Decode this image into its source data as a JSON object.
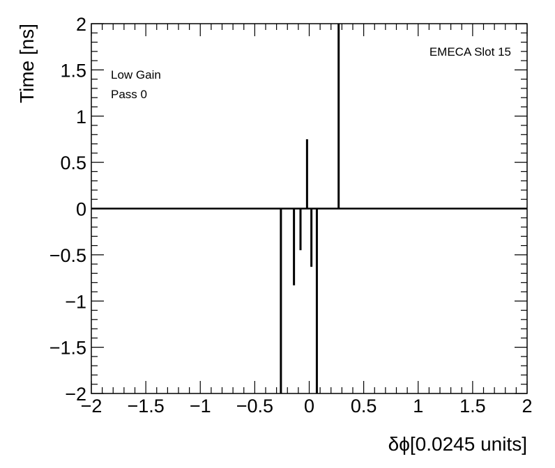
{
  "chart_data": {
    "type": "bar",
    "y_label": "Time [ns]",
    "x_label": "δϕ[0.0245 units]",
    "annotations": [
      "Low Gain",
      "Pass 0",
      "EMECA Slot 15"
    ],
    "x": [
      -0.26,
      -0.14,
      -0.08,
      -0.02,
      0.02,
      0.07,
      0.27
    ],
    "values": [
      -2,
      -0.83,
      -0.45,
      0.75,
      -0.63,
      -2,
      2
    ],
    "color": "#000000",
    "xlim": [
      -2,
      2
    ],
    "ylim": [
      -2,
      2
    ],
    "xticks": [
      {
        "value": -2,
        "label": "−2"
      },
      {
        "value": -1.5,
        "label": "−1.5"
      },
      {
        "value": -1,
        "label": "−1"
      },
      {
        "value": -0.5,
        "label": "−0.5"
      },
      0,
      0.5,
      1,
      1.5,
      2
    ],
    "yticks": [
      {
        "value": -2,
        "label": "−2"
      },
      {
        "value": -1.5,
        "label": "−1.5"
      },
      {
        "value": -1,
        "label": "−1"
      },
      {
        "value": -0.5,
        "label": "−0.5"
      },
      0,
      0.5,
      1,
      1.5,
      2
    ]
  }
}
